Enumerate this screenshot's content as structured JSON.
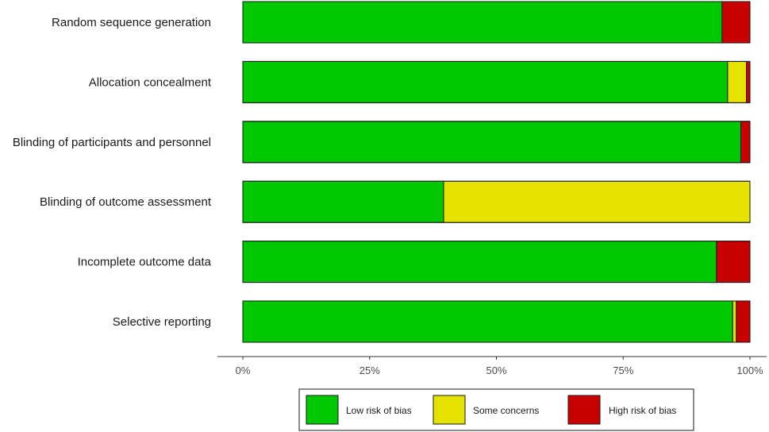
{
  "chart_data": {
    "type": "bar",
    "orientation": "horizontal",
    "stacked": true,
    "categories": [
      "Random sequence generation",
      "Allocation concealment",
      "Blinding of participants and personnel",
      "Blinding of outcome assessment",
      "Incomplete outcome data",
      "Selective reporting"
    ],
    "series": [
      {
        "name": "Low risk of bias",
        "color": "#00c800",
        "values": [
          94.5,
          95.6,
          98.2,
          39.6,
          93.4,
          96.6
        ]
      },
      {
        "name": "Some concerns",
        "color": "#e5e200",
        "values": [
          0,
          3.7,
          0,
          60.4,
          0,
          0.7
        ]
      },
      {
        "name": "High risk of bias",
        "color": "#c80000",
        "values": [
          5.5,
          0.7,
          1.8,
          0,
          6.6,
          2.7
        ]
      }
    ],
    "xlim": [
      0,
      100
    ],
    "x_ticks": [
      "0%",
      "25%",
      "50%",
      "75%",
      "100%"
    ],
    "legend_position": "bottom",
    "grid": false
  }
}
